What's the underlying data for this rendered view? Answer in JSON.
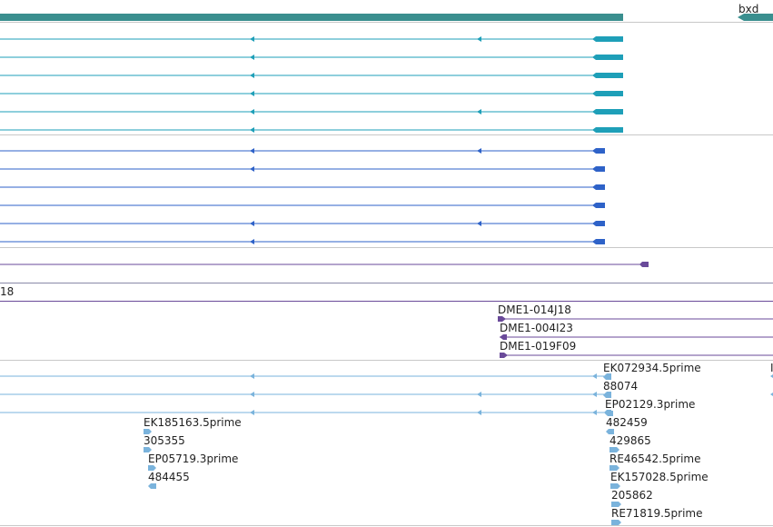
{
  "colors": {
    "gene": "#3a8f8f",
    "transcript_teal": "#1e9fb8",
    "transcript_blue": "#2e62c8",
    "purple": "#6a4a9a",
    "est": "#7ab3dc",
    "divider": "#c8c8c8"
  },
  "gene": {
    "label": "bxd"
  },
  "partial_label": "18",
  "bac_clones": [
    {
      "label": "DME1-014J18"
    },
    {
      "label": "DME1-004I23"
    },
    {
      "label": "DME1-019F09"
    }
  ],
  "est_right_labels": [
    "EK072934.5prime",
    "88074",
    "EP02129.3prime",
    "482459",
    "429865",
    "RE46542.5prime",
    "EK157028.5prime",
    "205862",
    "RE71819.5prime"
  ],
  "est_left_labels": [
    "EK185163.5prime",
    "305355",
    "EP05719.3prime",
    "484455"
  ]
}
